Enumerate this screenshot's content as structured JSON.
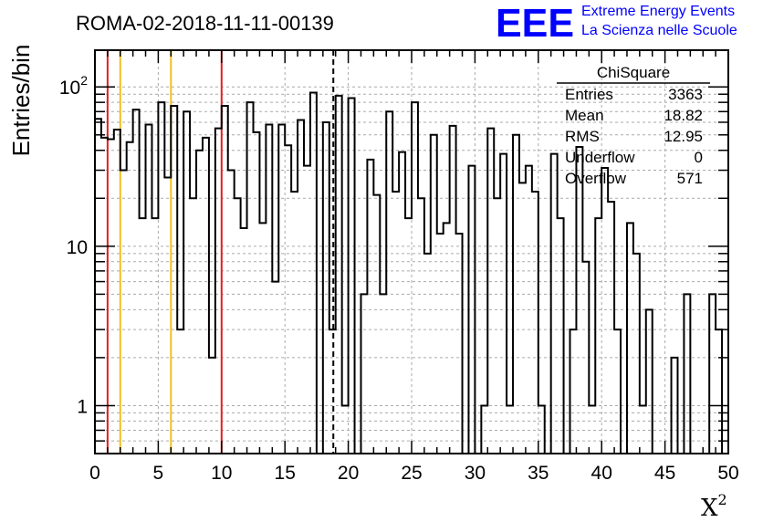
{
  "chart_data": {
    "type": "histogram",
    "title": "ROMA-02-2018-11-11-00139",
    "xlabel": "X",
    "xlabel_superscript": "2",
    "ylabel": "Entries/bin",
    "xlim": [
      0,
      50
    ],
    "ylim": [
      0.5,
      170
    ],
    "yscale": "log",
    "grid": true,
    "bin_width": 0.5,
    "x_ticks": [
      "0",
      "5",
      "10",
      "15",
      "20",
      "25",
      "30",
      "35",
      "40",
      "45",
      "50"
    ],
    "y_ticks": [
      {
        "value": 1,
        "label": "1"
      },
      {
        "value": 10,
        "label": "10"
      },
      {
        "value": 100,
        "label": "10",
        "exponent": "2"
      }
    ],
    "values": [
      63,
      48,
      47,
      54,
      30,
      45,
      72,
      15,
      58,
      15,
      80,
      27,
      76,
      3,
      70,
      20,
      40,
      48,
      2,
      55,
      76,
      30,
      20,
      13,
      80,
      52,
      14,
      58,
      6,
      58,
      43,
      22,
      62,
      32,
      92,
      0,
      60,
      3,
      88,
      1,
      85,
      0,
      5,
      35,
      21,
      5,
      70,
      22,
      39,
      15,
      80,
      20,
      9,
      50,
      12,
      14,
      57,
      12,
      0,
      32,
      0,
      1,
      55,
      20,
      38,
      1,
      50,
      25,
      32,
      22,
      1,
      0,
      38,
      15,
      0,
      3,
      42,
      8,
      1,
      15,
      31,
      19,
      3,
      0,
      14,
      9,
      1,
      4,
      0,
      0,
      0,
      2,
      0,
      5,
      0,
      0,
      0,
      5,
      3,
      0
    ],
    "vlines": [
      {
        "x": 1,
        "color": "#e02020",
        "style": "solid"
      },
      {
        "x": 2,
        "color": "#f0c020",
        "style": "solid"
      },
      {
        "x": 6,
        "color": "#f0c020",
        "style": "solid"
      },
      {
        "x": 10,
        "color": "#e02020",
        "style": "solid"
      },
      {
        "x": 18.82,
        "color": "#000000",
        "style": "dashed"
      }
    ],
    "line_color": "#000000",
    "stats_box": {
      "title": "ChiSquare",
      "rows": [
        {
          "label": "Entries",
          "value": "3363"
        },
        {
          "label": "Mean",
          "value": "18.82"
        },
        {
          "label": "RMS",
          "value": "12.95"
        },
        {
          "label": "Underflow",
          "value": "0"
        },
        {
          "label": "Overflow",
          "value": "571"
        }
      ]
    }
  },
  "logo": {
    "text": "EEE",
    "line1": "Extreme Energy Events",
    "line2": "La Scienza nelle Scuole",
    "color": "#0000ff"
  }
}
